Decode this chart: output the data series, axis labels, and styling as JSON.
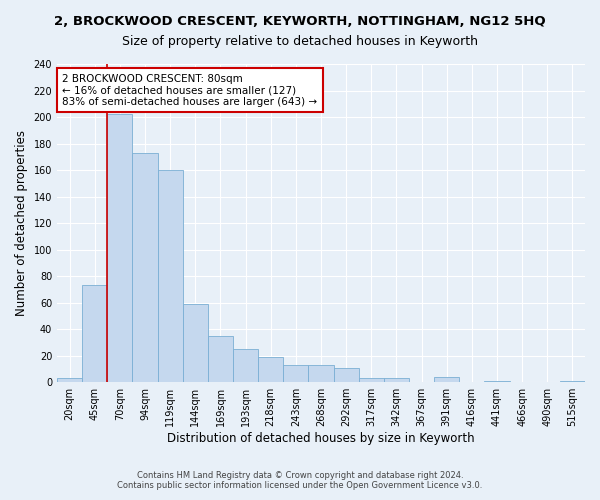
{
  "title": "2, BROCKWOOD CRESCENT, KEYWORTH, NOTTINGHAM, NG12 5HQ",
  "subtitle": "Size of property relative to detached houses in Keyworth",
  "xlabel": "Distribution of detached houses by size in Keyworth",
  "ylabel": "Number of detached properties",
  "categories": [
    "20sqm",
    "45sqm",
    "70sqm",
    "94sqm",
    "119sqm",
    "144sqm",
    "169sqm",
    "193sqm",
    "218sqm",
    "243sqm",
    "268sqm",
    "292sqm",
    "317sqm",
    "342sqm",
    "367sqm",
    "391sqm",
    "416sqm",
    "441sqm",
    "466sqm",
    "490sqm",
    "515sqm"
  ],
  "values": [
    3,
    73,
    202,
    173,
    160,
    59,
    35,
    25,
    19,
    13,
    13,
    11,
    3,
    3,
    0,
    4,
    0,
    1,
    0,
    0,
    1
  ],
  "bar_color": "#c5d8ee",
  "bar_edge_color": "#7aafd4",
  "vline_x_index": 2,
  "annotation_text_line1": "2 BROCKWOOD CRESCENT: 80sqm",
  "annotation_text_line2": "← 16% of detached houses are smaller (127)",
  "annotation_text_line3": "83% of semi-detached houses are larger (643) →",
  "annotation_box_color": "#ffffff",
  "annotation_box_edge_color": "#cc0000",
  "vline_color": "#cc0000",
  "footer_line1": "Contains HM Land Registry data © Crown copyright and database right 2024.",
  "footer_line2": "Contains public sector information licensed under the Open Government Licence v3.0.",
  "ylim": [
    0,
    240
  ],
  "yticks": [
    0,
    20,
    40,
    60,
    80,
    100,
    120,
    140,
    160,
    180,
    200,
    220,
    240
  ],
  "bg_color": "#e8f0f8",
  "plot_bg_color": "#e8f0f8",
  "grid_color": "#ffffff",
  "title_fontsize": 9.5,
  "subtitle_fontsize": 9,
  "tick_fontsize": 7,
  "label_fontsize": 8.5,
  "annotation_fontsize": 7.5,
  "footer_fontsize": 6
}
